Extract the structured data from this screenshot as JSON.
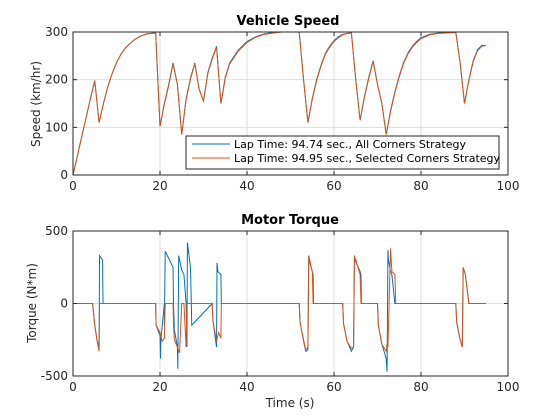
{
  "chart_data": [
    {
      "type": "line",
      "title": "Vehicle Speed",
      "xlabel": "",
      "ylabel": "Speed (km/hr)",
      "xlim": [
        0,
        100
      ],
      "ylim": [
        0,
        300
      ],
      "xticks": [
        0,
        20,
        40,
        60,
        80,
        100
      ],
      "yticks": [
        0,
        100,
        200,
        300
      ],
      "grid": true,
      "legend": "bottom-right",
      "series": [
        {
          "name": "Lap Time: 94.74 sec., All Corners Strategy",
          "color": "#0072BD",
          "x": [
            0,
            1,
            2,
            3,
            4,
            5,
            6,
            7,
            8,
            9,
            10,
            11,
            12,
            13,
            14,
            15,
            16,
            17,
            18,
            19,
            20,
            21,
            22,
            23,
            24,
            25,
            26,
            27,
            28,
            29,
            30,
            31,
            32,
            33,
            34,
            35,
            36,
            38,
            40,
            42,
            44,
            46,
            48,
            50,
            52,
            53,
            54,
            55,
            56,
            57,
            58,
            59,
            60,
            61,
            62,
            63,
            64,
            65,
            66,
            67,
            68,
            69,
            70,
            71,
            72,
            73,
            74,
            75,
            76,
            77,
            78,
            79,
            80,
            82,
            84,
            86,
            88,
            89,
            90,
            91,
            92,
            93,
            94,
            94.7
          ],
          "y": [
            0,
            40,
            80,
            120,
            160,
            198,
            110,
            150,
            185,
            213,
            236,
            253,
            266,
            275,
            283,
            289,
            293,
            296,
            297,
            298,
            102,
            150,
            190,
            235,
            190,
            85,
            160,
            203,
            235,
            180,
            155,
            215,
            245,
            270,
            150,
            205,
            235,
            262,
            280,
            290,
            296,
            299,
            300,
            300,
            300,
            200,
            110,
            160,
            200,
            230,
            255,
            270,
            282,
            290,
            295,
            297,
            298,
            200,
            115,
            165,
            205,
            240,
            190,
            150,
            85,
            135,
            175,
            208,
            236,
            256,
            270,
            280,
            288,
            295,
            298,
            299,
            300,
            235,
            150,
            200,
            240,
            263,
            272,
            272
          ]
        },
        {
          "name": "Lap Time: 94.95 sec., Selected Corners Strategy",
          "color": "#D95319",
          "x": [
            0,
            1,
            2,
            3,
            4,
            5,
            6,
            7,
            8,
            9,
            10,
            11,
            12,
            13,
            14,
            15,
            16,
            17,
            18,
            19,
            20,
            21,
            22,
            23,
            24,
            25,
            26,
            27,
            28,
            29,
            30,
            31,
            32,
            33,
            34,
            35,
            36,
            38,
            40,
            42,
            44,
            46,
            48,
            50,
            52,
            53,
            54,
            55,
            56,
            57,
            58,
            59,
            60,
            61,
            62,
            63,
            64,
            65,
            66,
            67,
            68,
            69,
            70,
            71,
            72,
            73,
            74,
            75,
            76,
            77,
            78,
            79,
            80,
            82,
            84,
            86,
            88,
            89,
            90,
            91,
            92,
            93,
            94,
            94.95
          ],
          "y": [
            0,
            40,
            80,
            120,
            160,
            198,
            110,
            150,
            185,
            213,
            236,
            253,
            266,
            275,
            283,
            289,
            293,
            296,
            297,
            298,
            102,
            148,
            188,
            233,
            190,
            85,
            158,
            201,
            233,
            180,
            155,
            213,
            243,
            268,
            150,
            203,
            233,
            260,
            278,
            289,
            295,
            298,
            300,
            300,
            300,
            200,
            110,
            158,
            198,
            228,
            253,
            268,
            280,
            288,
            294,
            297,
            298,
            200,
            115,
            163,
            203,
            238,
            190,
            150,
            85,
            133,
            173,
            206,
            234,
            254,
            268,
            278,
            286,
            294,
            297,
            298,
            299,
            235,
            150,
            198,
            238,
            261,
            270,
            272
          ]
        }
      ]
    },
    {
      "type": "line",
      "title": "Motor Torque",
      "xlabel": "Time (s)",
      "ylabel": "Torque (N*m)",
      "xlim": [
        0,
        100
      ],
      "ylim": [
        -500,
        500
      ],
      "xticks": [
        0,
        20,
        40,
        60,
        80,
        100
      ],
      "yticks": [
        -500,
        0,
        500
      ],
      "grid": true,
      "series": [
        {
          "name": "Lap Time: 94.74 sec., All Corners Strategy",
          "color": "#0072BD",
          "x": [
            0,
            4.5,
            5,
            5.5,
            6,
            6.1,
            6.8,
            6.9,
            19,
            19.1,
            20,
            20.1,
            20.2,
            21,
            21,
            21.2,
            23,
            23.1,
            23.3,
            24,
            24.1,
            24.3,
            25,
            25.5,
            26,
            26.2,
            26.3,
            27,
            27.2,
            27.3,
            32,
            32.2,
            32.8,
            33,
            33.1,
            33.3,
            34,
            34.1,
            34.3,
            35,
            35.1,
            52,
            52.2,
            53,
            53.5,
            54,
            54.2,
            54.3,
            55,
            55.2,
            55.3,
            62,
            62.2,
            63,
            64,
            64.5,
            64.7,
            64.8,
            66,
            66.2,
            66.3,
            70,
            70.2,
            71,
            72,
            72.2,
            72.4,
            72.5,
            73,
            73.3,
            74,
            74.2,
            74.3,
            88,
            88.2,
            89,
            89.5,
            89.7,
            90,
            90.2,
            91,
            91.1,
            94.7
          ],
          "y": [
            0,
            0,
            -150,
            -250,
            -300,
            330,
            300,
            0,
            0,
            -150,
            -220,
            -380,
            -250,
            0,
            -150,
            360,
            250,
            0,
            -180,
            -300,
            -450,
            330,
            230,
            200,
            0,
            -300,
            420,
            250,
            0,
            -150,
            0,
            -120,
            -260,
            -300,
            280,
            220,
            200,
            0,
            0,
            0,
            0,
            0,
            -130,
            -260,
            -330,
            -320,
            330,
            300,
            220,
            200,
            0,
            0,
            -140,
            -260,
            -330,
            -300,
            330,
            300,
            220,
            200,
            0,
            0,
            -150,
            -280,
            -380,
            -470,
            370,
            300,
            220,
            200,
            0,
            0,
            0,
            0,
            -130,
            -250,
            -300,
            240,
            220,
            200,
            0,
            0,
            0
          ]
        },
        {
          "name": "Lap Time: 94.95 sec., Selected Corners Strategy",
          "color": "#D95319",
          "x": [
            0,
            4.5,
            5,
            5.5,
            6,
            6.1,
            6.8,
            6.9,
            19,
            19.1,
            20,
            20.5,
            21,
            21.2,
            23,
            23.1,
            23.3,
            24,
            24.5,
            25,
            25.5,
            26,
            26.2,
            27,
            27.2,
            32,
            32.2,
            32.8,
            33,
            33.5,
            34,
            34.1,
            35,
            35.1,
            52,
            52.2,
            53,
            53.5,
            54,
            54.2,
            55,
            55.2,
            62,
            62.2,
            63,
            64,
            64.5,
            64.7,
            66,
            66.2,
            70,
            70.2,
            71,
            72,
            72.2,
            72.4,
            73,
            73.3,
            74,
            74.2,
            88,
            88.2,
            89,
            89.5,
            89.7,
            90,
            90.2,
            91,
            91.1,
            94.95
          ],
          "y": [
            0,
            0,
            -150,
            -250,
            -330,
            0,
            0,
            0,
            0,
            -150,
            -200,
            -260,
            -240,
            0,
            0,
            -150,
            -250,
            -300,
            -340,
            0,
            0,
            -300,
            0,
            0,
            0,
            0,
            -120,
            -230,
            -260,
            -200,
            -240,
            0,
            0,
            0,
            0,
            -130,
            -250,
            -320,
            -300,
            330,
            220,
            0,
            0,
            -140,
            -260,
            -310,
            -300,
            330,
            200,
            0,
            0,
            -150,
            -280,
            -330,
            -280,
            -300,
            380,
            220,
            200,
            0,
            0,
            -130,
            -250,
            -300,
            250,
            220,
            200,
            0,
            0,
            0
          ]
        }
      ]
    }
  ]
}
